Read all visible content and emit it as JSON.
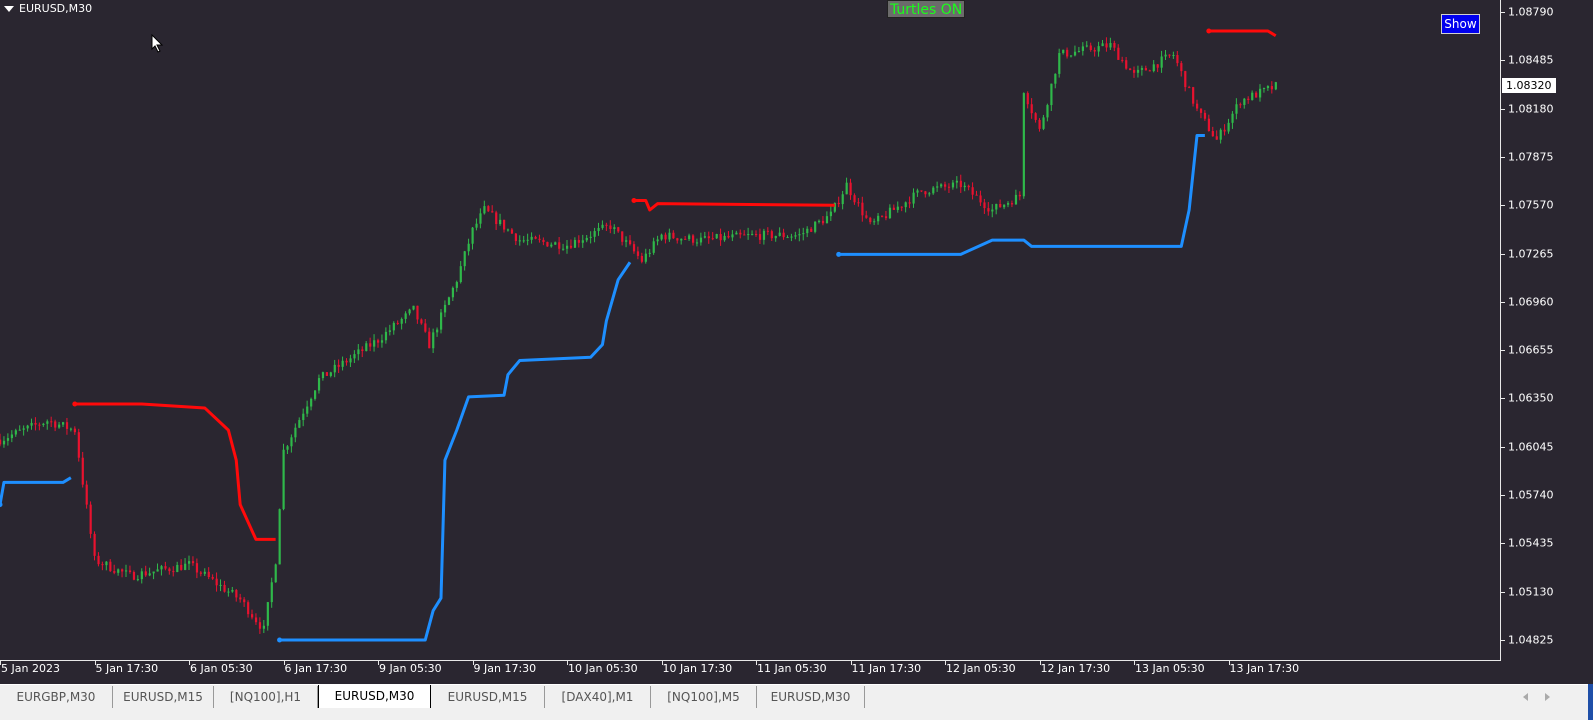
{
  "chart_header": {
    "symbol_label": "EURUSD,M30",
    "indicator_status": "Turtles ON",
    "show_button": "Show"
  },
  "price_axis": {
    "labels": [
      "1.08790",
      "1.08485",
      "1.08180",
      "1.07875",
      "1.07570",
      "1.07265",
      "1.06960",
      "1.06655",
      "1.06350",
      "1.06045",
      "1.05740",
      "1.05435",
      "1.05130",
      "1.04825"
    ],
    "current_price": "1.08320"
  },
  "time_axis": {
    "labels": [
      "5 Jan 2023",
      "5 Jan 17:30",
      "6 Jan 05:30",
      "6 Jan 17:30",
      "9 Jan 05:30",
      "9 Jan 17:30",
      "10 Jan 05:30",
      "10 Jan 17:30",
      "11 Jan 05:30",
      "11 Jan 17:30",
      "12 Jan 05:30",
      "12 Jan 17:30",
      "13 Jan 05:30",
      "13 Jan 17:30"
    ]
  },
  "tabs": [
    {
      "label": "EURGBP,M30",
      "active": false
    },
    {
      "label": "EURUSD,M15",
      "active": false
    },
    {
      "label": "[NQ100],H1",
      "active": false
    },
    {
      "label": "EURUSD,M30",
      "active": true
    },
    {
      "label": "EURUSD,M15",
      "active": false
    },
    {
      "label": "[DAX40],M1",
      "active": false
    },
    {
      "label": "[NQ100],M5",
      "active": false
    },
    {
      "label": "EURUSD,M30",
      "active": false
    }
  ],
  "icons": {
    "symbol_menu": "triangle-down-icon",
    "scroll_left": "arrow-left-icon",
    "scroll_right": "arrow-right-icon",
    "cursor": "mouse-pointer-icon"
  },
  "colors": {
    "background": "#2a2630",
    "bull_candle": "#2fb84a",
    "bear_candle": "#e8122f",
    "upper_channel": "#ff0a0a",
    "lower_channel": "#1e8fff",
    "mid_line": "#5b7a7a"
  },
  "chart_data": {
    "type": "candlestick",
    "timeframe": "M30",
    "ylim": [
      1.04825,
      1.0879
    ],
    "close_path": [
      [
        "01-05 05:30",
        1.0609
      ],
      [
        "01-05 11:30",
        1.0621
      ],
      [
        "01-05 15:00",
        1.0615
      ],
      [
        "01-05 17:30",
        1.0533
      ],
      [
        "01-05 22:00",
        1.0523
      ],
      [
        "01-06 05:30",
        1.053
      ],
      [
        "01-06 12:00",
        1.0508
      ],
      [
        "01-06 15:00",
        1.0489
      ],
      [
        "01-06 16:30",
        1.0533
      ],
      [
        "01-06 17:30",
        1.0602
      ],
      [
        "01-06 22:00",
        1.0647
      ],
      [
        "01-09 05:30",
        1.0672
      ],
      [
        "01-09 10:00",
        1.0691
      ],
      [
        "01-09 12:00",
        1.0669
      ],
      [
        "01-09 15:30",
        1.071
      ],
      [
        "01-09 17:30",
        1.0741
      ],
      [
        "01-09 19:00",
        1.0754
      ],
      [
        "01-09 23:30",
        1.0735
      ],
      [
        "01-10 05:30",
        1.0732
      ],
      [
        "01-10 11:00",
        1.0744
      ],
      [
        "01-10 15:00",
        1.0722
      ],
      [
        "01-10 17:30",
        1.0738
      ],
      [
        "01-10 22:30",
        1.0735
      ],
      [
        "01-11 05:30",
        1.0738
      ],
      [
        "01-11 11:00",
        1.0738
      ],
      [
        "01-11 15:00",
        1.0751
      ],
      [
        "01-11 17:00",
        1.077
      ],
      [
        "01-11 20:00",
        1.0744
      ],
      [
        "01-12 02:30",
        1.0766
      ],
      [
        "01-12 07:30",
        1.077
      ],
      [
        "01-12 11:30",
        1.0754
      ],
      [
        "01-12 15:00",
        1.0763
      ],
      [
        "01-12 15:30",
        1.083
      ],
      [
        "01-12 17:30",
        1.0804
      ],
      [
        "01-12 20:00",
        1.0852
      ],
      [
        "01-13 02:30",
        1.0858
      ],
      [
        "01-13 05:30",
        1.0839
      ],
      [
        "01-13 10:30",
        1.0852
      ],
      [
        "01-13 13:30",
        1.0817
      ],
      [
        "01-13 16:00",
        1.0798
      ],
      [
        "01-13 19:00",
        1.0823
      ],
      [
        "01-13 23:30",
        1.0832
      ]
    ],
    "upper_channel": [
      [
        [
          "01-05 15:00",
          1.06315
        ],
        [
          "01-05 23:30",
          1.06315
        ],
        [
          "01-06 07:30",
          1.0629
        ],
        [
          "01-06 10:30",
          1.0615
        ],
        [
          "01-06 11:30",
          1.0596
        ],
        [
          "01-06 12:00",
          1.0568
        ],
        [
          "01-06 14:00",
          1.0546
        ],
        [
          "01-06 16:30",
          1.0546
        ]
      ],
      [
        [
          "01-10 14:00",
          1.076
        ],
        [
          "01-10 15:30",
          1.076
        ],
        [
          "01-10 16:00",
          1.0754
        ],
        [
          "01-10 17:00",
          1.0758
        ],
        [
          "01-11 15:30",
          1.0757
        ]
      ],
      [
        [
          "01-13 15:00",
          1.0867
        ],
        [
          "01-13 22:30",
          1.0867
        ],
        [
          "01-13 23:30",
          1.0864
        ]
      ]
    ],
    "lower_channel": [
      [
        [
          "01-05 05:30",
          1.0568
        ],
        [
          "01-05 06:00",
          1.0582
        ],
        [
          "01-05 13:30",
          1.0582
        ],
        [
          "01-05 14:30",
          1.0585
        ]
      ],
      [
        [
          "01-06 17:00",
          1.04825
        ],
        [
          "01-09 11:30",
          1.04825
        ],
        [
          "01-09 12:30",
          1.0501
        ],
        [
          "01-09 13:30",
          1.0509
        ],
        [
          "01-09 14:00",
          1.0596
        ],
        [
          "01-09 15:30",
          1.0615
        ],
        [
          "01-09 17:00",
          1.0636
        ],
        [
          "01-09 21:30",
          1.0637
        ],
        [
          "01-09 22:00",
          1.065
        ],
        [
          "01-09 23:30",
          1.0659
        ],
        [
          "01-10 08:30",
          1.0661
        ],
        [
          "01-10 10:00",
          1.0669
        ],
        [
          "01-10 10:30",
          1.0684
        ],
        [
          "01-10 12:00",
          1.071
        ],
        [
          "01-10 13:30",
          1.0721
        ]
      ],
      [
        [
          "01-11 16:00",
          1.0726
        ],
        [
          "01-12 07:30",
          1.0726
        ],
        [
          "01-12 11:30",
          1.0735
        ],
        [
          "01-12 15:30",
          1.0735
        ],
        [
          "01-12 16:30",
          1.0731
        ],
        [
          "01-13 11:30",
          1.0731
        ],
        [
          "01-13 12:30",
          1.0754
        ],
        [
          "01-13 13:30",
          1.0801
        ],
        [
          "01-13 14:30",
          1.0801
        ]
      ]
    ]
  }
}
